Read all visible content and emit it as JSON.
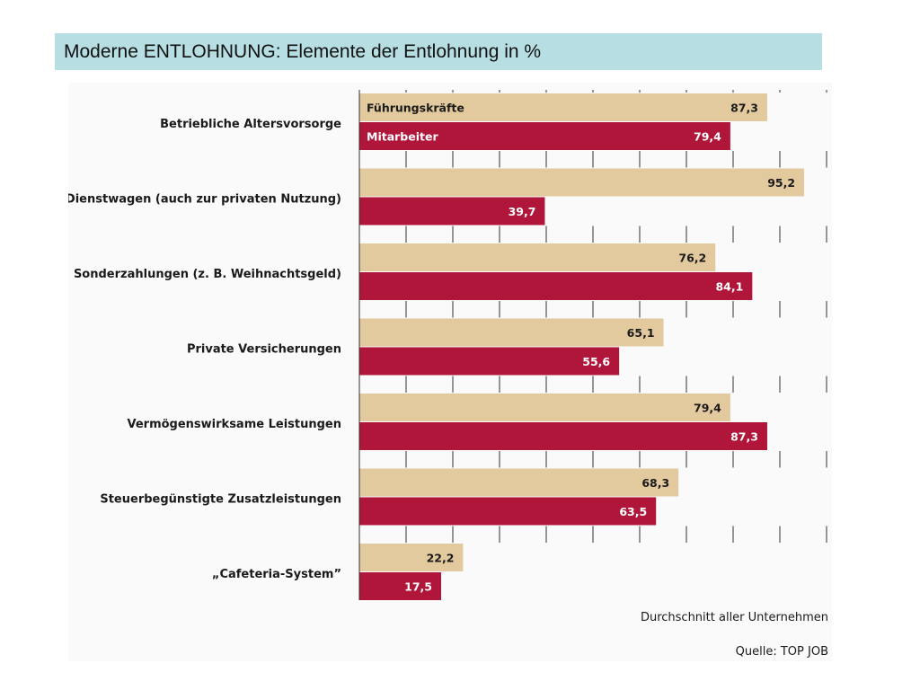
{
  "slide": {
    "title": "Moderne ENTLOHNUNG: Elemente der Entlohnung in %"
  },
  "colors": {
    "fuehrung": "#e3c99e",
    "mitarbeiter": "#b0163a",
    "title_bg": "#b7dfe3"
  },
  "chart_data": {
    "type": "bar",
    "orientation": "horizontal",
    "categories": [
      "Betriebliche Altersvorsorge",
      "Dienstwagen (auch zur privaten Nutzung)",
      "Sonderzahlungen (z. B. Weihnachtsgeld)",
      "Private Versicherungen",
      "Vermögenswirksame Leistungen",
      "Steuerbegünstigte Zusatzleistungen",
      "„Cafeteria-System”"
    ],
    "series": [
      {
        "name": "Führungskräfte",
        "values": [
          87.3,
          95.2,
          76.2,
          65.1,
          79.4,
          68.3,
          22.2
        ],
        "labels": [
          "87,3",
          "95,2",
          "76,2",
          "65,1",
          "79,4",
          "68,3",
          "22,2"
        ]
      },
      {
        "name": "Mitarbeiter",
        "values": [
          79.4,
          39.7,
          84.1,
          55.6,
          87.3,
          63.5,
          17.5
        ],
        "labels": [
          "79,4",
          "39,7",
          "84,1",
          "55,6",
          "87,3",
          "63,5",
          "17,5"
        ]
      }
    ],
    "xlim": [
      0,
      100
    ],
    "grid": true,
    "legend": "inside-first-bars",
    "xlabel": "Durchschnitt aller Unternehmen",
    "source": "Quelle: TOP JOB"
  }
}
